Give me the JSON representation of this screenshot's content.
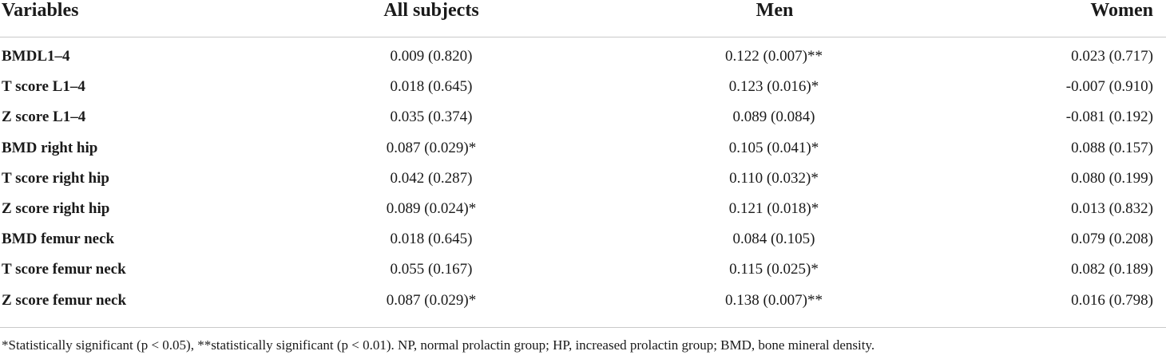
{
  "table": {
    "headers": {
      "variables": "Variables",
      "all_subjects": "All subjects",
      "men": "Men",
      "women": "Women"
    },
    "rows": [
      {
        "variable": "BMDL1–4",
        "all": "0.009 (0.820)",
        "men": "0.122 (0.007)**",
        "women": "0.023 (0.717)"
      },
      {
        "variable": "T score L1–4",
        "all": "0.018 (0.645)",
        "men": "0.123 (0.016)*",
        "women": "-0.007 (0.910)"
      },
      {
        "variable": "Z score L1–4",
        "all": "0.035 (0.374)",
        "men": "0.089 (0.084)",
        "women": "-0.081 (0.192)"
      },
      {
        "variable": "BMD right hip",
        "all": "0.087 (0.029)*",
        "men": "0.105 (0.041)*",
        "women": "0.088 (0.157)"
      },
      {
        "variable": "T score right hip",
        "all": "0.042 (0.287)",
        "men": "0.110 (0.032)*",
        "women": "0.080 (0.199)"
      },
      {
        "variable": "Z score right hip",
        "all": "0.089 (0.024)*",
        "men": "0.121 (0.018)*",
        "women": "0.013 (0.832)"
      },
      {
        "variable": "BMD femur neck",
        "all": "0.018 (0.645)",
        "men": "0.084 (0.105)",
        "women": "0.079 (0.208)"
      },
      {
        "variable": "T score femur neck",
        "all": "0.055 (0.167)",
        "men": "0.115 (0.025)*",
        "women": "0.082 (0.189)"
      },
      {
        "variable": "Z score femur neck",
        "all": "0.087 (0.029)*",
        "men": "0.138 (0.007)**",
        "women": "0.016 (0.798)"
      }
    ],
    "footnote": "*Statistically significant (p < 0.05), **statistically significant (p < 0.01). NP, normal prolactin group; HP, increased prolactin group; BMD, bone mineral density."
  }
}
